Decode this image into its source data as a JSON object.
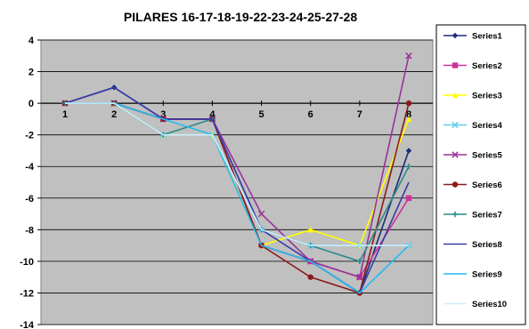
{
  "chart_data": {
    "type": "line",
    "title": "PILARES 16-17-18-19-22-23-24-25-27-28",
    "x": [
      1,
      2,
      3,
      4,
      5,
      6,
      7,
      8
    ],
    "ylim": [
      -14,
      4
    ],
    "yticks": [
      4,
      2,
      0,
      -2,
      -4,
      -6,
      -8,
      -10,
      -12,
      -14
    ],
    "grid": true,
    "legend_position": "right",
    "plot_background": "#c0c0c0",
    "series": [
      {
        "name": "Series1",
        "color": "#1f2a7a",
        "marker": "diamond",
        "values": [
          0,
          1,
          -1,
          -1,
          -9,
          -10,
          -12,
          -3
        ]
      },
      {
        "name": "Series2",
        "color": "#cc3399",
        "marker": "square",
        "values": [
          0,
          0,
          -1,
          -1,
          -9,
          -10,
          -11,
          -6
        ]
      },
      {
        "name": "Series3",
        "color": "#ffff00",
        "marker": "triangle",
        "values": [
          0,
          0,
          -2,
          -2,
          -9,
          -8,
          -9,
          -1
        ]
      },
      {
        "name": "Series4",
        "color": "#66ccee",
        "marker": "x",
        "values": [
          0,
          0,
          -2,
          -2,
          -8,
          -9,
          -9,
          -9
        ]
      },
      {
        "name": "Series5",
        "color": "#993399",
        "marker": "x",
        "values": [
          0,
          0,
          -1,
          -1,
          -7,
          -10,
          -11,
          3
        ]
      },
      {
        "name": "Series6",
        "color": "#8b1a1a",
        "marker": "circle",
        "values": [
          0,
          0,
          -1,
          -1,
          -9,
          -11,
          -12,
          0
        ]
      },
      {
        "name": "Series7",
        "color": "#2a8a8a",
        "marker": "plus",
        "values": [
          0,
          0,
          -2,
          -1,
          -8,
          -9,
          -10,
          -4
        ]
      },
      {
        "name": "Series8",
        "color": "#3a3aa8",
        "marker": "none",
        "values": [
          0,
          1,
          -1,
          -1,
          -8,
          -10,
          -12,
          -5
        ]
      },
      {
        "name": "Series9",
        "color": "#22bbee",
        "marker": "none",
        "values": [
          0,
          0,
          -1,
          -2,
          -9,
          -10,
          -12,
          -9
        ]
      },
      {
        "name": "Series10",
        "color": "#cceeff",
        "marker": "none",
        "values": [
          0,
          0,
          -2,
          -2,
          -8,
          -9,
          -9,
          -9
        ]
      }
    ]
  }
}
